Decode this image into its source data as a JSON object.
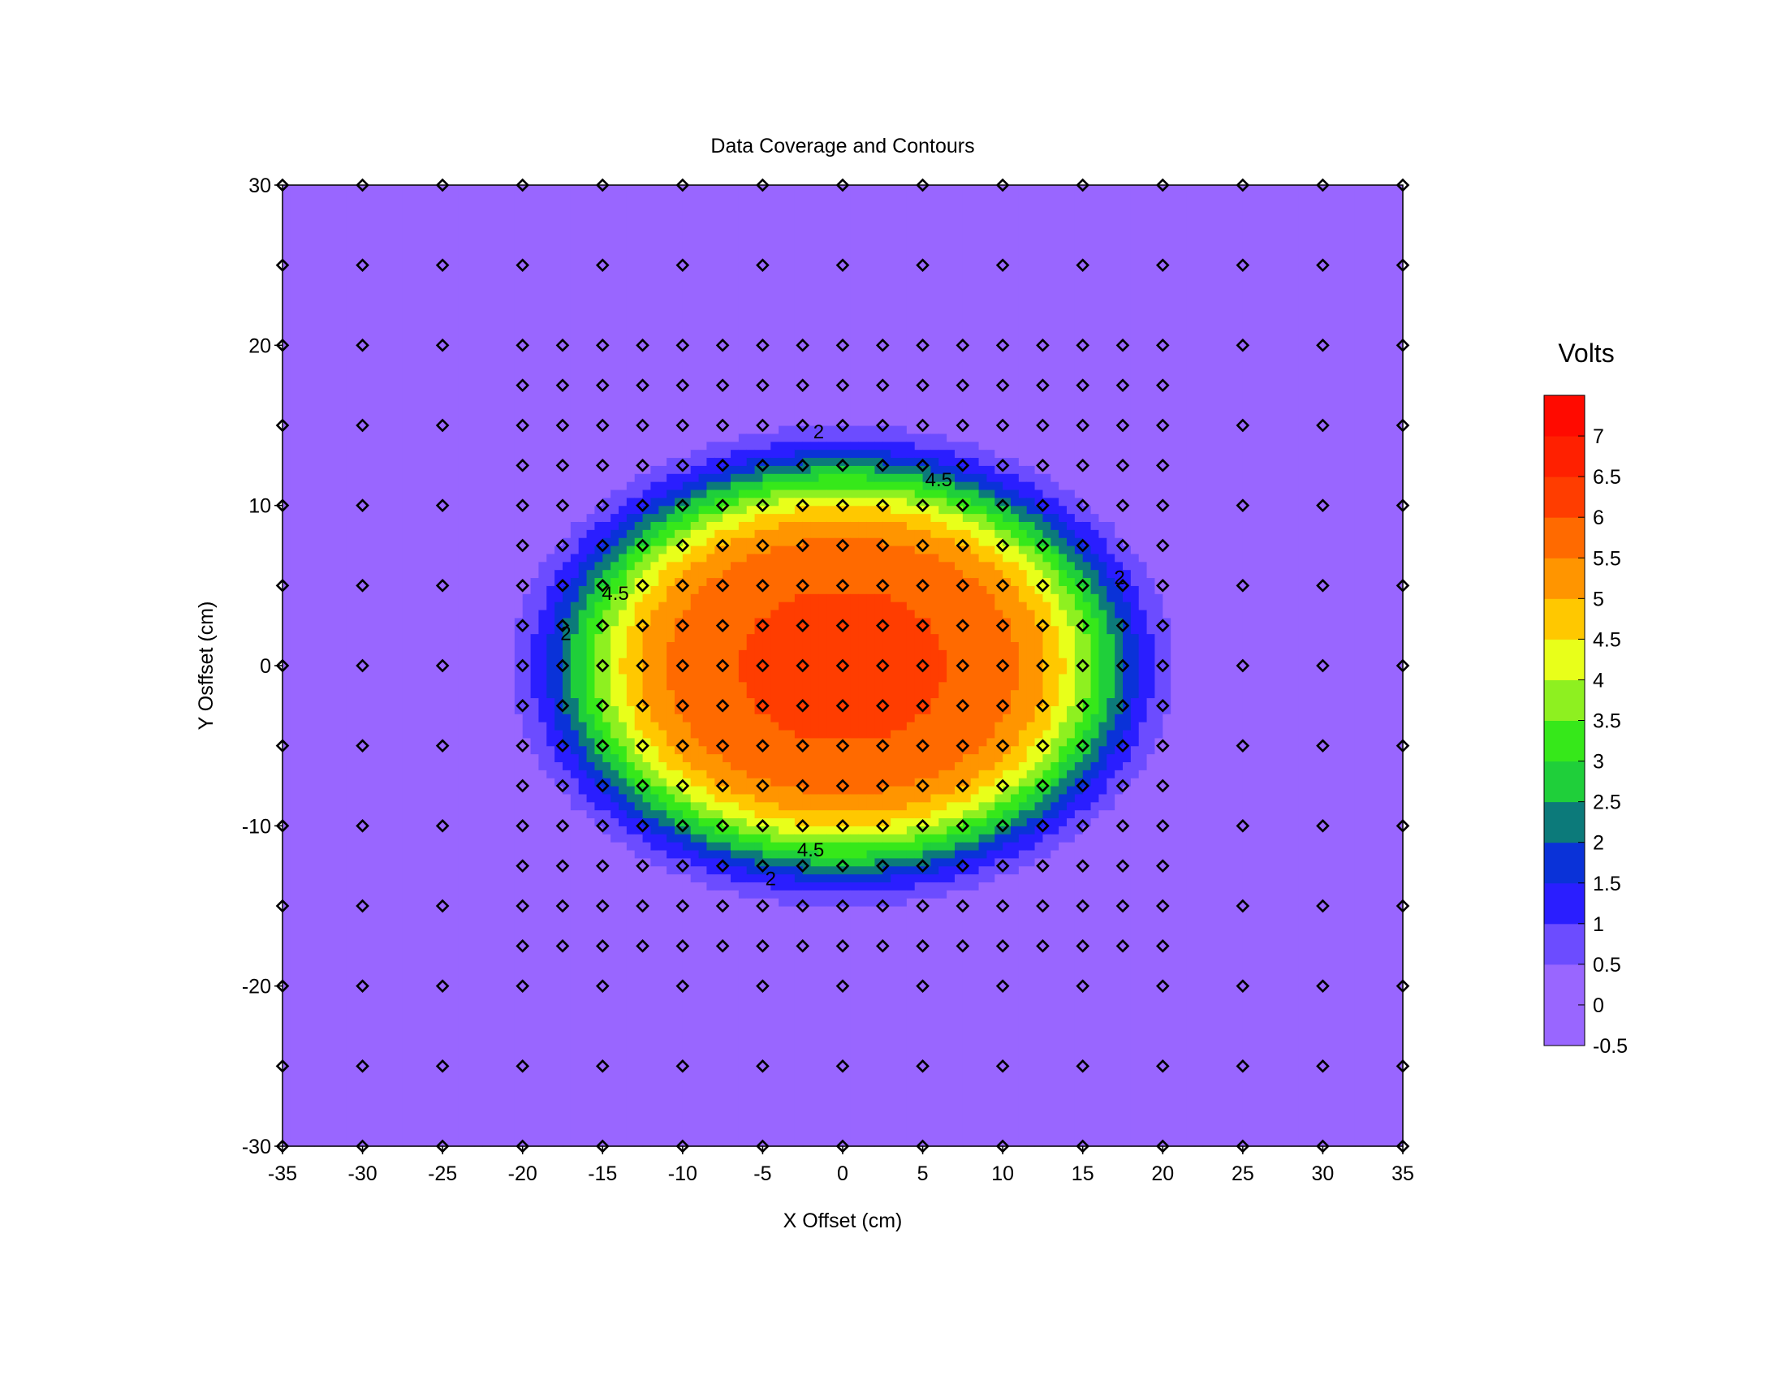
{
  "chart_data": {
    "type": "heatmap",
    "subtype": "filled-contour",
    "title": "Data Coverage and Contours",
    "xlabel": "X Offset (cm)",
    "ylabel": "Y Osffset (cm)",
    "xlim": [
      -35,
      35
    ],
    "ylim": [
      -30,
      30
    ],
    "x_ticks": [
      "-35",
      "-30",
      "-25",
      "-20",
      "-15",
      "-10",
      "-5",
      "0",
      "5",
      "10",
      "15",
      "20",
      "25",
      "30",
      "35"
    ],
    "y_ticks": [
      "30",
      "20",
      "10",
      "0",
      "-10",
      "-20",
      "-30"
    ],
    "grid": false,
    "colorbar": {
      "title": "Volts",
      "placement": "right",
      "range": [
        -0.5,
        7.5
      ],
      "tick_labels": [
        "7",
        "6.5",
        "6",
        "5.5",
        "5",
        "4.5",
        "4",
        "3.5",
        "3",
        "2.5",
        "2",
        "1.5",
        "1",
        "0.5",
        "0",
        "-0.5"
      ],
      "levels": [
        -0.5,
        0,
        0.5,
        1,
        1.5,
        2,
        2.5,
        3,
        3.5,
        4,
        4.5,
        5,
        5.5,
        6,
        6.5,
        7,
        7.5
      ],
      "colors": [
        "#9966ff",
        "#9966ff",
        "#6c4cff",
        "#2a1eff",
        "#0a32d8",
        "#0c7a7a",
        "#1fcf3a",
        "#36e81a",
        "#8ef020",
        "#e8ff1a",
        "#ffc800",
        "#ff9500",
        "#ff6a00",
        "#ff3d00",
        "#ff2000",
        "#ff0a00"
      ]
    },
    "field": {
      "model": "gaussian-like plateau",
      "center": [
        0,
        0
      ],
      "peak_volts": 6.1,
      "radius_x_cm": 16.5,
      "radius_y_cm": 12.0,
      "edge_width_cm": 2.4
    },
    "contour_labels": [
      {
        "text": "2",
        "x": -1.5,
        "y": 14.6
      },
      {
        "text": "4.5",
        "x": 6,
        "y": 11.6
      },
      {
        "text": "4.5",
        "x": -14.2,
        "y": 4.5
      },
      {
        "text": "2",
        "x": -17.3,
        "y": 2
      },
      {
        "text": "2",
        "x": 17.3,
        "y": 5.5
      },
      {
        "text": "4.5",
        "x": -2,
        "y": -11.5
      },
      {
        "text": "2",
        "x": -4.5,
        "y": -13.3
      }
    ],
    "data_points": {
      "marker": "diamond",
      "outer_grid_step_cm": 5,
      "inner_grid_step_cm": 2.5,
      "inner_region": {
        "x": [
          -20,
          20
        ],
        "y": [
          -17.5,
          20
        ]
      },
      "outer_region": {
        "x": [
          -35,
          35
        ],
        "y": [
          -30,
          30
        ]
      }
    }
  }
}
